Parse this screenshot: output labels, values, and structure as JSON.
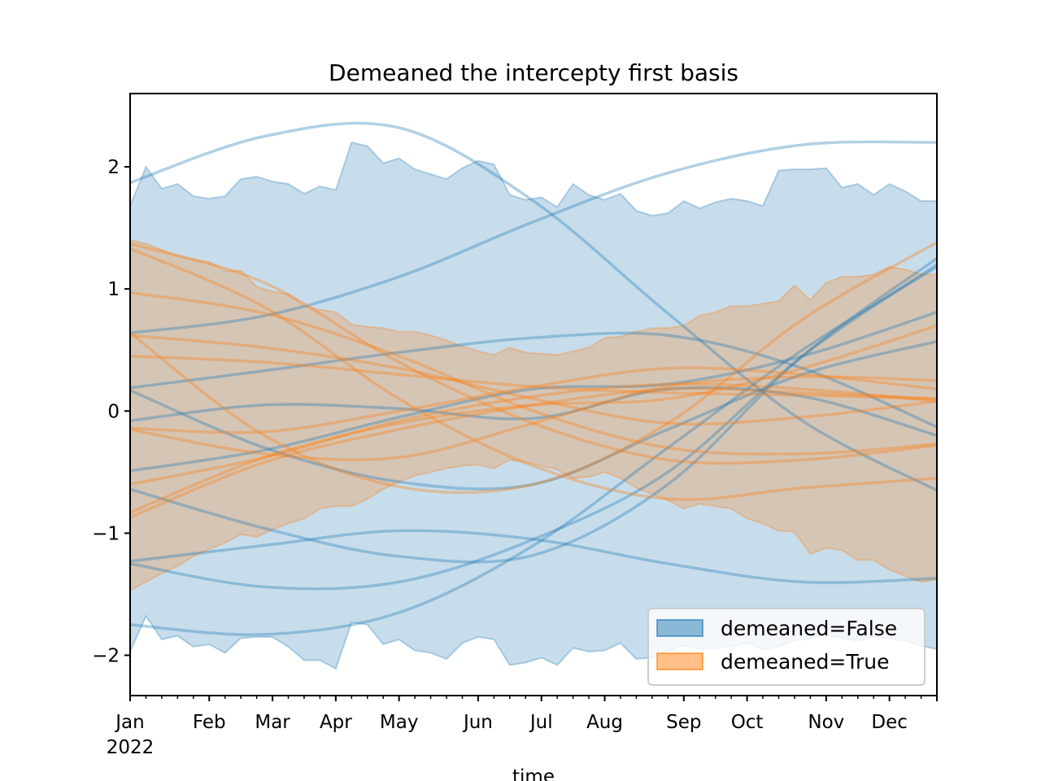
{
  "chart_data": {
    "type": "area",
    "title": "Demeaned the intercepty first basis",
    "xlabel": "time",
    "ylabel": "",
    "x_unit": "week index of 2022 (0 = Jan 1)",
    "xlim": [
      0,
      51
    ],
    "ylim": [
      -2.33,
      2.6
    ],
    "grid": false,
    "y_ticks": [
      {
        "value": 2,
        "label": "2"
      },
      {
        "value": 1,
        "label": "1"
      },
      {
        "value": 0,
        "label": "0"
      },
      {
        "value": -1,
        "label": "−1"
      },
      {
        "value": -2,
        "label": "−2"
      }
    ],
    "x_major_ticks": [
      {
        "value": 0,
        "label": "Jan",
        "sublabel": "2022"
      },
      {
        "value": 5,
        "label": "Feb"
      },
      {
        "value": 9,
        "label": "Mar"
      },
      {
        "value": 13,
        "label": "Apr"
      },
      {
        "value": 17,
        "label": "May"
      },
      {
        "value": 22,
        "label": "Jun"
      },
      {
        "value": 26,
        "label": "Jul"
      },
      {
        "value": 30,
        "label": "Aug"
      },
      {
        "value": 35,
        "label": "Sep"
      },
      {
        "value": 39,
        "label": "Oct"
      },
      {
        "value": 44,
        "label": "Nov"
      },
      {
        "value": 48,
        "label": "Dec"
      }
    ],
    "x_minor_tick_step": 1,
    "legend": {
      "position": "lower-right",
      "entries": [
        {
          "label": "demeaned=False",
          "color": "#1f77b4"
        },
        {
          "label": "demeaned=True",
          "color": "#ff7f0e"
        }
      ]
    },
    "bands": [
      {
        "name": "demeaned=False",
        "color": "#1f77b4",
        "upper": [
          1.68,
          2.0,
          1.82,
          1.86,
          1.76,
          1.74,
          1.76,
          1.9,
          1.92,
          1.88,
          1.86,
          1.78,
          1.84,
          1.81,
          2.2,
          2.17,
          2.03,
          2.07,
          1.98,
          1.94,
          1.9,
          1.99,
          2.05,
          2.02,
          1.77,
          1.73,
          1.75,
          1.67,
          1.86,
          1.77,
          1.73,
          1.78,
          1.64,
          1.6,
          1.62,
          1.72,
          1.66,
          1.71,
          1.74,
          1.72,
          1.68,
          1.97,
          1.98,
          1.98,
          1.99,
          1.83,
          1.86,
          1.77,
          1.86,
          1.8,
          1.72,
          1.72
        ],
        "lower": [
          -1.97,
          -1.68,
          -1.87,
          -1.84,
          -1.93,
          -1.91,
          -1.98,
          -1.86,
          -1.85,
          -1.85,
          -1.93,
          -2.04,
          -2.04,
          -2.11,
          -1.73,
          -1.75,
          -1.91,
          -1.87,
          -1.96,
          -1.98,
          -2.03,
          -1.9,
          -1.85,
          -1.87,
          -2.08,
          -2.06,
          -2.02,
          -2.08,
          -1.94,
          -1.97,
          -1.96,
          -1.9,
          -2.03,
          -2.02,
          -1.96,
          -1.92,
          -1.95,
          -1.94,
          -1.93,
          -1.9,
          -1.95,
          -1.93,
          -1.88,
          -1.86,
          -1.83,
          -1.86,
          -1.88,
          -1.85,
          -1.86,
          -1.88,
          -1.92,
          -1.95
        ]
      },
      {
        "name": "demeaned=True",
        "color": "#ff7f0e",
        "upper": [
          1.4,
          1.37,
          1.32,
          1.27,
          1.24,
          1.22,
          1.15,
          1.15,
          1.02,
          0.98,
          0.96,
          0.86,
          0.83,
          0.81,
          0.71,
          0.69,
          0.68,
          0.65,
          0.65,
          0.62,
          0.58,
          0.53,
          0.49,
          0.46,
          0.52,
          0.48,
          0.47,
          0.46,
          0.49,
          0.52,
          0.6,
          0.61,
          0.65,
          0.68,
          0.68,
          0.7,
          0.78,
          0.81,
          0.86,
          0.86,
          0.88,
          0.9,
          1.03,
          0.91,
          1.05,
          1.1,
          1.1,
          1.12,
          1.18,
          1.16,
          1.12,
          1.12
        ],
        "lower": [
          -1.47,
          -1.4,
          -1.33,
          -1.27,
          -1.19,
          -1.13,
          -1.08,
          -1.01,
          -1.03,
          -0.97,
          -0.92,
          -0.88,
          -0.8,
          -0.78,
          -0.78,
          -0.72,
          -0.64,
          -0.58,
          -0.53,
          -0.5,
          -0.47,
          -0.45,
          -0.44,
          -0.47,
          -0.4,
          -0.42,
          -0.45,
          -0.48,
          -0.55,
          -0.54,
          -0.5,
          -0.55,
          -0.63,
          -0.68,
          -0.73,
          -0.8,
          -0.76,
          -0.78,
          -0.8,
          -0.88,
          -0.92,
          -0.98,
          -0.99,
          -1.17,
          -1.12,
          -1.14,
          -1.22,
          -1.22,
          -1.3,
          -1.35,
          -1.4,
          -1.38
        ]
      }
    ],
    "curve_knots_x": [
      0,
      8.5,
      17,
      25.5,
      34,
      42.5,
      51
    ],
    "curves": [
      {
        "group": "demeaned=False",
        "color": "#1f77b4",
        "y": [
          1.87,
          2.25,
          2.32,
          1.72,
          0.8,
          -0.08,
          -0.65
        ]
      },
      {
        "group": "demeaned=False",
        "color": "#1f77b4",
        "y": [
          0.64,
          0.78,
          1.1,
          1.55,
          1.95,
          2.18,
          2.2
        ]
      },
      {
        "group": "demeaned=False",
        "color": "#1f77b4",
        "y": [
          0.19,
          0.33,
          0.48,
          0.6,
          0.62,
          0.35,
          -0.13
        ]
      },
      {
        "group": "demeaned=False",
        "color": "#1f77b4",
        "y": [
          -0.08,
          0.05,
          0.02,
          -0.06,
          0.18,
          0.12,
          -0.2
        ]
      },
      {
        "group": "demeaned=False",
        "color": "#1f77b4",
        "y": [
          0.17,
          -0.3,
          -0.58,
          -0.6,
          -0.15,
          0.3,
          0.57
        ]
      },
      {
        "group": "demeaned=False",
        "color": "#1f77b4",
        "y": [
          -0.49,
          -0.32,
          -0.05,
          0.18,
          0.22,
          0.45,
          0.81
        ]
      },
      {
        "group": "demeaned=False",
        "color": "#1f77b4",
        "y": [
          -0.64,
          -0.96,
          -1.19,
          -1.18,
          -0.6,
          0.45,
          1.25
        ]
      },
      {
        "group": "demeaned=False",
        "color": "#1f77b4",
        "y": [
          -1.23,
          -1.1,
          -0.98,
          -1.05,
          -1.25,
          -1.4,
          -1.37
        ]
      },
      {
        "group": "demeaned=False",
        "color": "#1f77b4",
        "y": [
          -1.25,
          -1.44,
          -1.4,
          -1.05,
          -0.5,
          0.45,
          1.2
        ]
      },
      {
        "group": "demeaned=False",
        "color": "#1f77b4",
        "y": [
          -1.75,
          -1.83,
          -1.65,
          -1.1,
          -0.3,
          0.5,
          1.18
        ]
      },
      {
        "group": "demeaned=True",
        "color": "#ff7f0e",
        "y": [
          1.37,
          1.05,
          0.4,
          -0.1,
          -0.4,
          -0.4,
          -0.28
        ]
      },
      {
        "group": "demeaned=True",
        "color": "#ff7f0e",
        "y": [
          1.33,
          0.85,
          0.1,
          -0.45,
          -0.72,
          -0.63,
          -0.55
        ]
      },
      {
        "group": "demeaned=True",
        "color": "#ff7f0e",
        "y": [
          0.97,
          0.8,
          0.45,
          0.0,
          -0.3,
          -0.35,
          -0.27
        ]
      },
      {
        "group": "demeaned=True",
        "color": "#ff7f0e",
        "y": [
          0.62,
          0.52,
          0.35,
          0.1,
          -0.1,
          -0.05,
          0.08
        ]
      },
      {
        "group": "demeaned=True",
        "color": "#ff7f0e",
        "y": [
          0.45,
          0.4,
          0.3,
          0.2,
          0.15,
          0.13,
          0.1
        ]
      },
      {
        "group": "demeaned=True",
        "color": "#ff7f0e",
        "y": [
          0.64,
          -0.2,
          -0.62,
          -0.6,
          -0.1,
          0.75,
          1.38
        ]
      },
      {
        "group": "demeaned=True",
        "color": "#ff7f0e",
        "y": [
          -0.14,
          -0.17,
          0.0,
          0.2,
          0.35,
          0.3,
          0.18
        ]
      },
      {
        "group": "demeaned=True",
        "color": "#ff7f0e",
        "y": [
          -0.6,
          -0.38,
          -0.08,
          0.12,
          0.22,
          0.18,
          0.08
        ]
      },
      {
        "group": "demeaned=True",
        "color": "#ff7f0e",
        "y": [
          -0.83,
          -0.38,
          -0.1,
          0.05,
          0.1,
          0.35,
          0.7
        ]
      },
      {
        "group": "demeaned=True",
        "color": "#ff7f0e",
        "y": [
          -0.87,
          -0.42,
          -0.15,
          0.05,
          0.18,
          0.15,
          0.1
        ]
      },
      {
        "group": "demeaned=True",
        "color": "#ff7f0e",
        "y": [
          -0.15,
          -0.35,
          -0.38,
          -0.1,
          0.2,
          0.28,
          0.25
        ]
      }
    ]
  }
}
